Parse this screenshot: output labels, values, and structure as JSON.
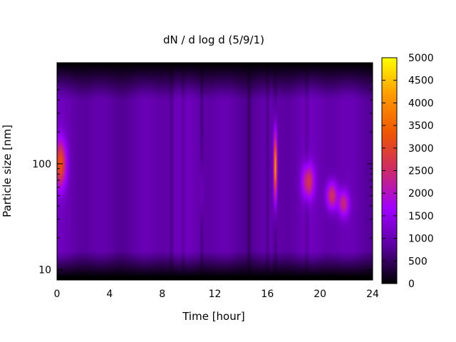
{
  "chart_data": {
    "type": "heatmap",
    "title": "dN / d log d (5/9/1)",
    "xlabel": "Time [hour]",
    "ylabel": "Particle size [nm]",
    "x_ticks": [
      0,
      4,
      8,
      12,
      16,
      20,
      24
    ],
    "xlim": [
      0,
      24
    ],
    "y_scale": "log",
    "y_ticks": [
      10,
      100
    ],
    "ylim": [
      8,
      900
    ],
    "colorbar": {
      "ticks": [
        0,
        500,
        1000,
        1500,
        2000,
        2500,
        3000,
        3500,
        4000,
        4500,
        5000
      ],
      "range": [
        0,
        5000
      ],
      "colormap": [
        "#000000",
        "#5a00a0",
        "#a000ff",
        "#cc2a6a",
        "#ee5500",
        "#ff9900",
        "#ffff00"
      ]
    },
    "background_level": 1100,
    "features": [
      {
        "time": 0.25,
        "size": 100,
        "peak": 3300,
        "time_width": 0.45,
        "size_width": 0.22
      },
      {
        "time": 16.6,
        "size": 95,
        "peak": 4600,
        "time_width": 0.12,
        "size_width": 0.32
      },
      {
        "time": 19.1,
        "size": 68,
        "peak": 2800,
        "time_width": 0.45,
        "size_width": 0.16
      },
      {
        "time": 20.9,
        "size": 50,
        "peak": 2750,
        "time_width": 0.42,
        "size_width": 0.13
      },
      {
        "time": 21.8,
        "size": 42,
        "peak": 2500,
        "time_width": 0.4,
        "size_width": 0.12
      },
      {
        "time": 11.0,
        "size": 55,
        "peak": 1500,
        "time_width": 0.12,
        "size_width": 0.25
      }
    ]
  }
}
